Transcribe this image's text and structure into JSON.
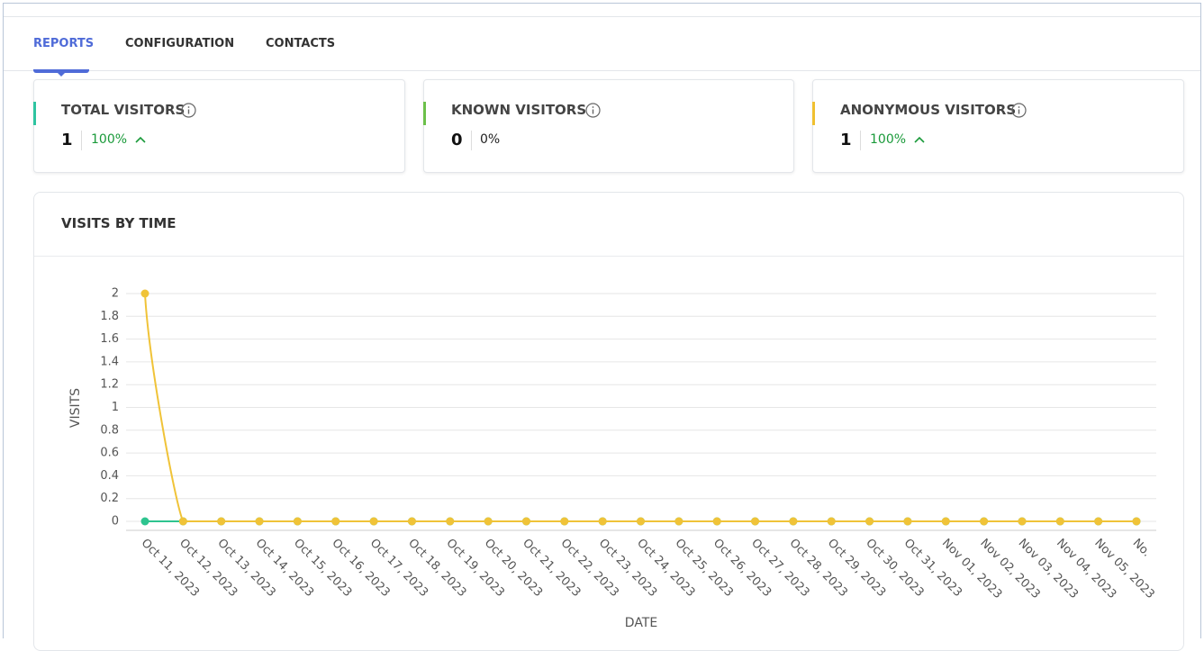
{
  "tabs": [
    "REPORTS",
    "CONFIGURATION",
    "CONTACTS"
  ],
  "cards": [
    {
      "title": "TOTAL VISITORS",
      "value": "1",
      "change": "100%"
    },
    {
      "title": "KNOWN VISITORS",
      "value": "0",
      "change": "0%"
    },
    {
      "title": "ANONYMOUS VISITORS",
      "value": "1",
      "change": "100%"
    }
  ],
  "chart_data": {
    "type": "line",
    "title": "VISITS BY TIME",
    "y_label": "VISITS",
    "x_label": "DATE",
    "categories": [
      "Oct 11, 2023",
      "Oct 12, 2023",
      "Oct 13, 2023",
      "Oct 14, 2023",
      "Oct 15, 2023",
      "Oct 16, 2023",
      "Oct 17, 2023",
      "Oct 18, 2023",
      "Oct 19, 2023",
      "Oct 20, 2023",
      "Oct 21, 2023",
      "Oct 22, 2023",
      "Oct 23, 2023",
      "Oct 24, 2023",
      "Oct 25, 2023",
      "Oct 26, 2023",
      "Oct 27, 2023",
      "Oct 28, 2023",
      "Oct 29, 2023",
      "Oct 30, 2023",
      "Oct 31, 2023",
      "Nov 01, 2023",
      "Nov 02, 2023",
      "Nov 03, 2023",
      "Nov 04, 2023",
      "Nov 05, 2023",
      "No."
    ],
    "series": [
      {
        "color": "#2ec48f",
        "values": [
          0,
          0,
          0,
          0,
          0,
          0,
          0,
          0,
          0,
          0,
          0,
          0,
          0,
          0,
          0,
          0,
          0,
          0,
          0,
          0,
          0,
          0,
          0,
          0,
          0,
          0,
          0
        ]
      },
      {
        "color": "#f0c338",
        "values": [
          2,
          0,
          0,
          0,
          0,
          0,
          0,
          0,
          0,
          0,
          0,
          0,
          0,
          0,
          0,
          0,
          0,
          0,
          0,
          0,
          0,
          0,
          0,
          0,
          0,
          0,
          0
        ]
      }
    ],
    "ylim": [
      0,
      2
    ],
    "yticks": [
      0,
      0.2,
      0.4,
      0.6,
      0.8,
      1,
      1.2,
      1.4,
      1.6,
      1.8,
      2
    ],
    "grid": true
  }
}
